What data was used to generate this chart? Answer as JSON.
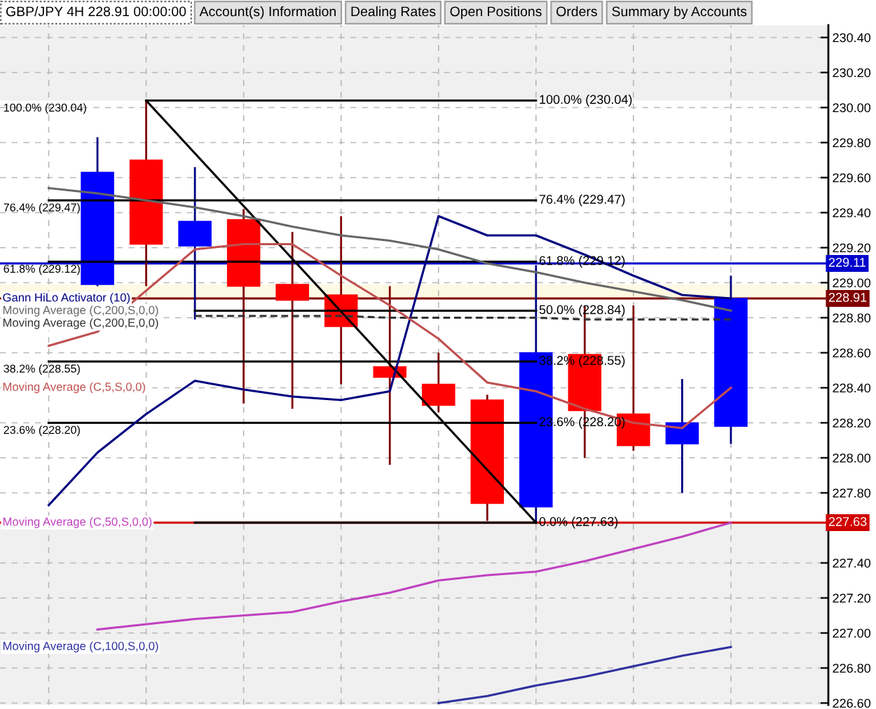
{
  "chart_data": {
    "type": "candlestick",
    "title": "GBP/JPY 4H 228.91 00:00:00",
    "categories": [
      null,
      null,
      null,
      null,
      null,
      null,
      null,
      null,
      null,
      null,
      null,
      null,
      null,
      null,
      null,
      null,
      null
    ],
    "ohlc": [
      null,
      [
        228.99,
        229.83,
        228.98,
        229.63
      ],
      [
        229.7,
        230.04,
        228.98,
        229.22
      ],
      [
        229.21,
        229.66,
        228.79,
        229.35
      ],
      [
        229.36,
        229.42,
        228.31,
        228.98
      ],
      [
        228.99,
        229.29,
        228.28,
        228.9
      ],
      [
        228.93,
        229.38,
        228.42,
        228.75
      ],
      [
        228.52,
        228.98,
        227.96,
        228.46
      ],
      [
        228.42,
        228.6,
        228.26,
        228.3
      ],
      [
        228.33,
        228.36,
        227.64,
        227.74
      ],
      [
        227.72,
        229.1,
        227.63,
        228.6
      ],
      [
        228.59,
        228.87,
        228.0,
        228.27
      ],
      [
        228.25,
        228.87,
        228.04,
        228.07
      ],
      [
        228.08,
        228.45,
        227.8,
        228.2
      ],
      [
        228.18,
        229.04,
        228.08,
        228.91
      ],
      null,
      null
    ],
    "colors": [
      null,
      "#0000ff",
      "#ff0000",
      "#0000ff",
      "#ff0000",
      "#ff0000",
      "#ff0000",
      "#ff0000",
      "#ff0000",
      "#ff0000",
      "#0000ff",
      "#ff0000",
      "#ff0000",
      "#0000ff",
      "#0000ff",
      null,
      null
    ],
    "series": [
      {
        "type": "line",
        "name": "100.0% (230.04)",
        "color": "#000000",
        "values": [
          null,
          null,
          230.04,
          230.04,
          230.04,
          230.04,
          230.04,
          230.04,
          230.04,
          230.04,
          230.04,
          null,
          null,
          null,
          null,
          null,
          null
        ]
      },
      {
        "type": "line",
        "name": "76.4% (229.47)",
        "color": "#000000",
        "values": [
          229.47,
          229.47,
          229.47,
          229.47,
          229.47,
          229.47,
          229.47,
          229.47,
          229.47,
          229.47,
          229.47,
          null,
          null,
          null,
          null,
          null,
          null
        ]
      },
      {
        "type": "line",
        "name": "61.8% (229.12)",
        "color": "#000000",
        "values": [
          229.12,
          229.12,
          229.12,
          229.12,
          229.12,
          229.12,
          229.12,
          229.12,
          229.12,
          229.12,
          229.12,
          null,
          null,
          null,
          null,
          null,
          null
        ]
      },
      {
        "type": "line",
        "name": "50.0% (228.84)",
        "color": "#000000",
        "values": [
          null,
          null,
          null,
          228.84,
          228.84,
          228.84,
          228.84,
          228.84,
          228.84,
          228.84,
          228.84,
          null,
          null,
          null,
          null,
          null,
          null
        ]
      },
      {
        "type": "line",
        "name": "38.2% (228.55)",
        "color": "#000000",
        "values": [
          228.55,
          228.55,
          228.55,
          228.55,
          228.55,
          228.55,
          228.55,
          228.55,
          228.55,
          228.55,
          228.55,
          null,
          null,
          null,
          null,
          null,
          null
        ]
      },
      {
        "type": "line",
        "name": "23.6% (228.20)",
        "color": "#000000",
        "values": [
          228.2,
          228.2,
          228.2,
          228.2,
          228.2,
          228.2,
          228.2,
          228.2,
          228.2,
          228.2,
          228.2,
          null,
          null,
          null,
          null,
          null,
          null
        ]
      },
      {
        "type": "line",
        "name": "0.0% (227.63)",
        "color": "#000000",
        "values": [
          null,
          null,
          null,
          227.63,
          227.63,
          227.63,
          227.63,
          227.63,
          227.63,
          227.63,
          227.63,
          null,
          null,
          null,
          null,
          null,
          null
        ]
      },
      {
        "type": "line",
        "color": "#000000",
        "values": [
          null,
          null,
          230.04,
          null,
          null,
          null,
          null,
          null,
          null,
          null,
          227.63,
          null,
          null,
          null,
          null,
          null,
          null
        ]
      },
      {
        "type": "line",
        "name": "Gann HiLo Activator (10)",
        "color": "#000080",
        "values": [
          227.73,
          228.03,
          228.25,
          228.44,
          228.39,
          228.35,
          228.33,
          228.38,
          229.38,
          229.27,
          229.27,
          229.16,
          229.04,
          228.93,
          228.91,
          null,
          null
        ]
      },
      {
        "type": "line",
        "name": "Moving Average (C,200,S,0,0)",
        "color": "#666666",
        "values": [
          229.54,
          229.51,
          229.47,
          229.43,
          229.38,
          229.32,
          229.27,
          229.24,
          229.19,
          229.11,
          229.06,
          229.0,
          228.95,
          228.9,
          228.84,
          null,
          null
        ]
      },
      {
        "type": "line",
        "name": "Moving Average (C,200,E,0,0)",
        "color": "#333333",
        "line_style": "dashed",
        "values": [
          null,
          null,
          null,
          228.81,
          228.81,
          228.81,
          228.81,
          228.8,
          228.8,
          228.8,
          228.8,
          228.79,
          228.79,
          228.79,
          228.79,
          null,
          null
        ]
      },
      {
        "type": "line",
        "name": "Moving Average (C,5,S,0,0)",
        "color": "#c05050",
        "values": [
          228.64,
          228.72,
          null,
          229.19,
          229.22,
          229.22,
          229.04,
          228.87,
          228.68,
          228.43,
          228.38,
          228.28,
          228.2,
          228.17,
          228.4,
          null,
          null
        ]
      },
      {
        "type": "line",
        "name": "Moving Average (C,50,S,0,0)",
        "color": "#c040c0",
        "values": [
          null,
          227.02,
          227.05,
          227.08,
          227.1,
          227.12,
          227.18,
          227.23,
          227.3,
          227.33,
          227.35,
          227.41,
          227.48,
          227.55,
          227.63,
          null,
          null
        ]
      },
      {
        "type": "line",
        "name": "Moving Average (C,100,S,0,0)",
        "color": "#3030a0",
        "values": [
          null,
          null,
          null,
          null,
          null,
          null,
          null,
          null,
          226.6,
          226.64,
          226.7,
          226.75,
          226.81,
          226.87,
          226.92,
          null,
          null
        ]
      }
    ],
    "ylim": [
      226.59,
      230.47
    ],
    "yticks": [
      {
        "value": 226.6,
        "label": "226.60"
      },
      {
        "value": 226.8,
        "label": "226.80"
      },
      {
        "value": 227.0,
        "label": "227.00"
      },
      {
        "value": 227.2,
        "label": "227.20"
      },
      {
        "value": 227.4,
        "label": "227.40"
      },
      {
        "value": 227.8,
        "label": "227.80"
      },
      {
        "value": 228.0,
        "label": "228.00"
      },
      {
        "value": 228.2,
        "label": "228.20"
      },
      {
        "value": 228.4,
        "label": "228.40"
      },
      {
        "value": 228.6,
        "label": "228.60"
      },
      {
        "value": 228.8,
        "label": "228.80"
      },
      {
        "value": 229.0,
        "label": "229.00"
      },
      {
        "value": 229.2,
        "label": "229.20"
      },
      {
        "value": 229.4,
        "label": "229.40"
      },
      {
        "value": 229.6,
        "label": "229.60"
      },
      {
        "value": 229.8,
        "label": "229.80"
      },
      {
        "value": 230.0,
        "label": "230.00"
      },
      {
        "value": 230.2,
        "label": "230.20"
      },
      {
        "value": 230.4,
        "label": "230.40"
      }
    ],
    "ref_lines": [
      {
        "axis": "y",
        "value": 229.11,
        "label": "229.11",
        "color": "#0000cc"
      },
      {
        "axis": "y",
        "value": 228.91,
        "label": "228.91",
        "color": "#800000"
      },
      {
        "axis": "y",
        "value": 227.63,
        "label": "227.63",
        "color": "#d00000"
      }
    ],
    "bands": [
      {
        "axis": "y",
        "from": 227.63,
        "to": 230.04,
        "color": "#ffffff"
      },
      {
        "axis": "y",
        "from": 228.91,
        "to": 228.99,
        "color": "#fdf9e3"
      }
    ],
    "annotations": [
      "Account(s) Information",
      "Dealing Rates",
      "Open Positions",
      "Orders",
      "Summary by Accounts",
      {
        "text": "100.0% (230.04)",
        "y": 230.04
      },
      {
        "text": "76.4% (229.47)",
        "y": 229.47
      },
      {
        "text": "61.8% (229.12)",
        "y": 229.12
      },
      {
        "text": "38.2% (228.55)",
        "y": 228.55
      },
      {
        "text": "23.6% (228.20)",
        "y": 228.2
      }
    ],
    "grid": true,
    "tick_labels": "y"
  }
}
